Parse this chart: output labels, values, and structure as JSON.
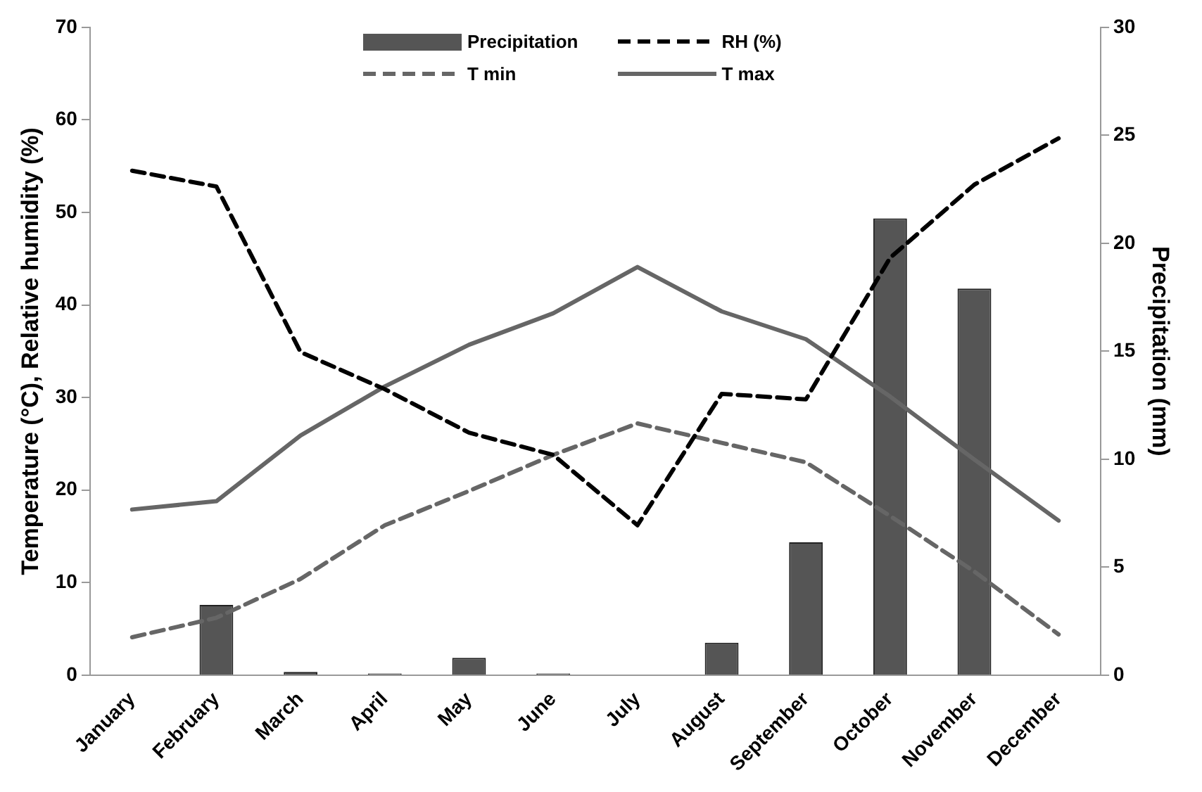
{
  "chart_data": {
    "type": "bar",
    "ylabel": "Temperature (°C), Relative humidity (%)",
    "y2label": "Precipitation (mm)",
    "categories": [
      "January",
      "February",
      "March",
      "April",
      "May",
      "June",
      "July",
      "August",
      "September",
      "October",
      "November",
      "December"
    ],
    "series": [
      {
        "name": "Precipitation",
        "axis": "y2",
        "color": "#555555",
        "values": [
          0,
          3.25,
          0.15,
          0.08,
          0.8,
          0.08,
          0,
          1.5,
          6.15,
          21.15,
          17.9,
          0
        ]
      },
      {
        "name": "RH (%)",
        "type": "line",
        "line_style": "dashed",
        "color": "#000000",
        "values": [
          54.5,
          52.8,
          34.9,
          30.9,
          26.2,
          23.8,
          16.2,
          30.4,
          29.8,
          45.1,
          53.0,
          58.0
        ]
      },
      {
        "name": "T min",
        "type": "line",
        "line_style": "dashed",
        "color": "#666666",
        "values": [
          4.1,
          6.2,
          10.4,
          16.2,
          19.9,
          23.8,
          27.2,
          25.1,
          23.0,
          17.2,
          11.2,
          4.4
        ]
      },
      {
        "name": "T max",
        "type": "line",
        "line_style": "solid",
        "color": "#666666",
        "values": [
          17.9,
          18.8,
          25.9,
          31.2,
          35.7,
          39.1,
          44.1,
          39.3,
          36.3,
          30.1,
          23.3,
          16.7
        ]
      }
    ],
    "ylim": [
      0,
      70
    ],
    "yticks": [
      0,
      10,
      20,
      30,
      40,
      50,
      60,
      70
    ],
    "y2lim": [
      0,
      30
    ],
    "y2ticks": [
      0,
      5,
      10,
      15,
      20,
      25,
      30
    ],
    "grid": false,
    "legend": "top",
    "marker": "none"
  }
}
